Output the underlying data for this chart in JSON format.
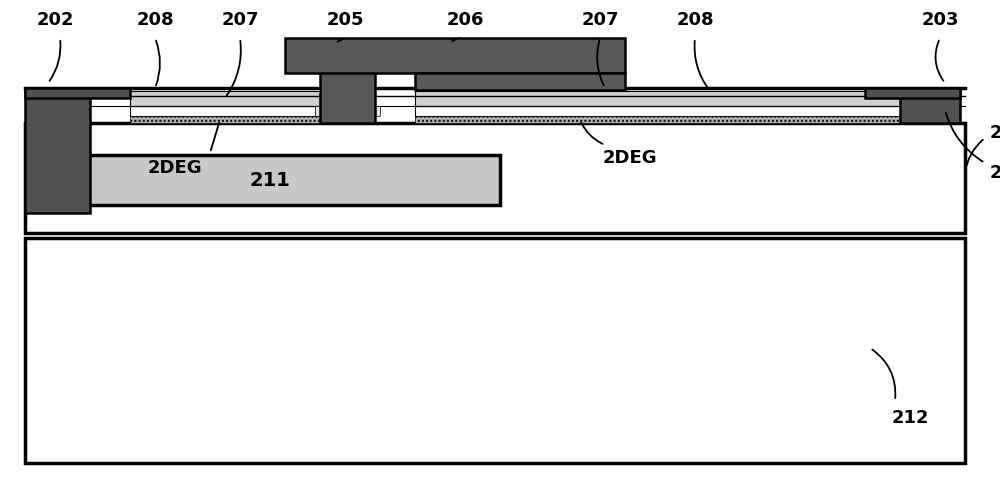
{
  "fig_width": 10.0,
  "fig_height": 5.03,
  "bg_color": "#ffffff",
  "colors": {
    "dark_gray": "#555555",
    "medium_gray": "#888888",
    "light_gray": "#c8c8c8",
    "lighter_gray": "#e0e0e0",
    "white": "#ffffff",
    "black": "#000000",
    "passivation": "#d0d0d0",
    "gan_body": "#f5f5f5",
    "algan_hatch": "#b0b0b0",
    "substrate_white": "#ffffff",
    "gate_dark": "#585858",
    "source_dark": "#505050",
    "drain_dark": "#505050"
  }
}
